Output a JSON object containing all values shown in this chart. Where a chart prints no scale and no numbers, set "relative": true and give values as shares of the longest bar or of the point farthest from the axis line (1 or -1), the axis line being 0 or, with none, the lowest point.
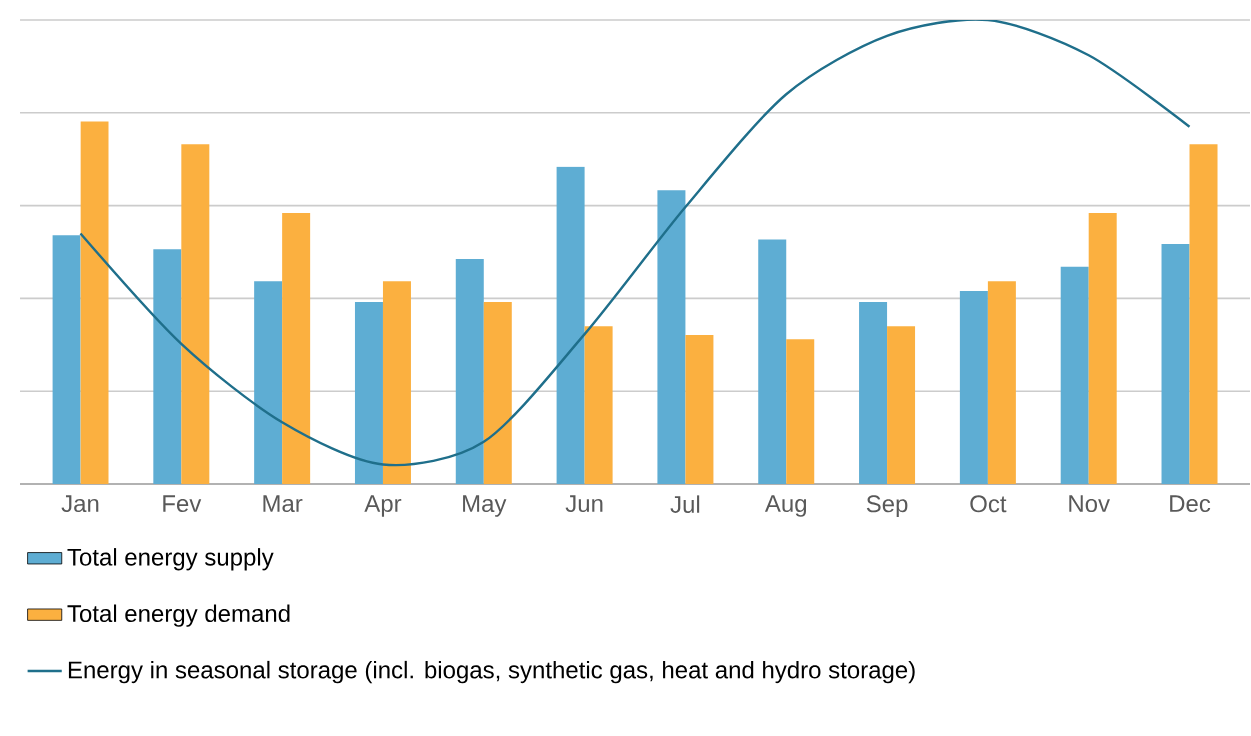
{
  "chart_data": {
    "type": "bar",
    "relative": true,
    "grid": "y",
    "legend": "bottom",
    "categories": [
      "Jan",
      "Fev",
      "Mar",
      "Apr",
      "May",
      "Jun",
      "Jul",
      "Aug",
      "Sep",
      "Oct",
      "Nov",
      "Dec"
    ],
    "series": [
      {
        "name": "Total energy supply",
        "color": "#5eadd3",
        "values": [
          0.536,
          0.506,
          0.437,
          0.392,
          0.485,
          0.684,
          0.633,
          0.527,
          0.392,
          0.416,
          0.468,
          0.517
        ]
      },
      {
        "name": "Total energy demand",
        "color": "#fbb040",
        "values": [
          0.781,
          0.732,
          0.584,
          0.437,
          0.392,
          0.34,
          0.321,
          0.312,
          0.34,
          0.437,
          0.584,
          0.732
        ]
      },
      {
        "name": "Energy in seasonal storage (incl. biogas, synthetic gas, heat and hydro storage)",
        "type": "line",
        "color": "#1f6f8b",
        "values": [
          0.54,
          0.302,
          0.133,
          0.042,
          0.091,
          0.323,
          0.597,
          0.84,
          0.966,
          1.0,
          0.924,
          0.77
        ]
      }
    ]
  }
}
